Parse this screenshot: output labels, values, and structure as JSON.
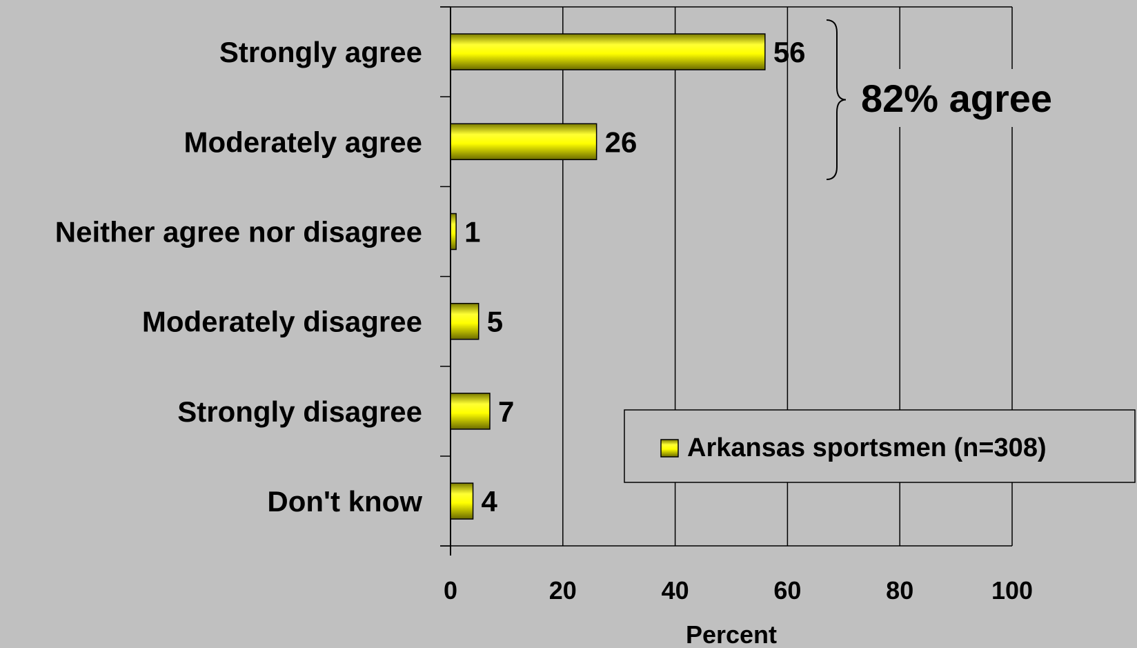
{
  "chart_data": {
    "type": "bar",
    "orientation": "horizontal",
    "categories": [
      "Strongly agree",
      "Moderately agree",
      "Neither agree nor disagree",
      "Moderately disagree",
      "Strongly disagree",
      "Don't know"
    ],
    "series": [
      {
        "name": "Arkansas sportsmen (n=308)",
        "values": [
          56,
          26,
          1,
          5,
          7,
          4
        ]
      }
    ],
    "xlabel": "Percent",
    "xlim": [
      0,
      100
    ],
    "xticks": [
      0,
      20,
      40,
      60,
      80,
      100
    ],
    "grid": true,
    "legend": "bottom-right",
    "annotation": {
      "text": "82% agree",
      "spans_categories": [
        "Strongly agree",
        "Moderately agree"
      ]
    },
    "colors": {
      "bar": "#ffff00",
      "background": "#c0c0c0"
    }
  }
}
